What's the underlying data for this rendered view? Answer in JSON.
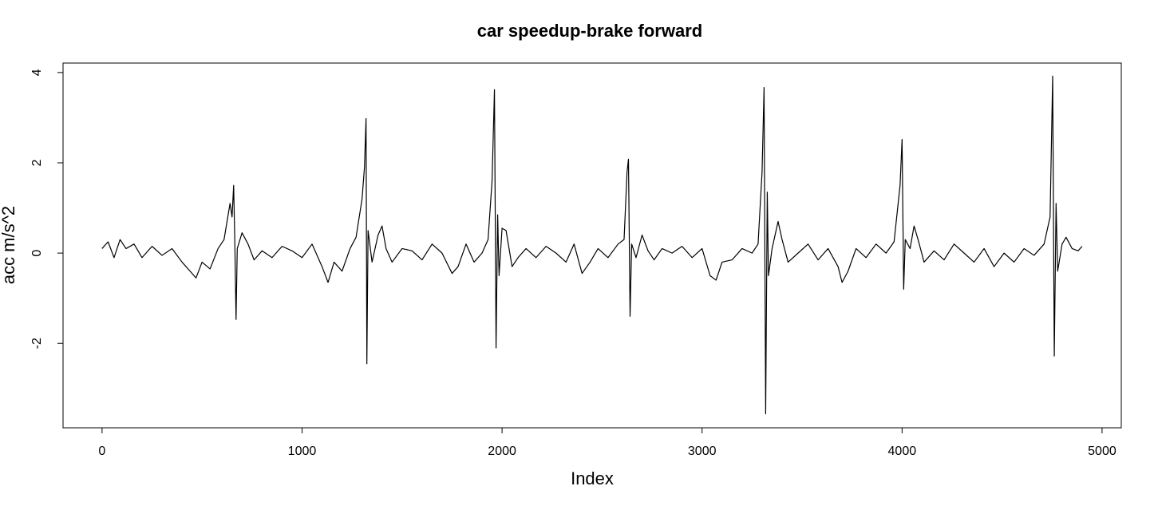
{
  "chart_data": {
    "type": "line",
    "title": "car speedup-brake forward",
    "xlabel": "Index",
    "ylabel": "acc m/s^2",
    "x": [
      0,
      30,
      60,
      90,
      120,
      160,
      200,
      250,
      300,
      350,
      400,
      440,
      470,
      500,
      540,
      580,
      610,
      640,
      650,
      658,
      664,
      670,
      676,
      700,
      730,
      760,
      800,
      850,
      900,
      950,
      1000,
      1050,
      1100,
      1130,
      1160,
      1200,
      1240,
      1270,
      1300,
      1312,
      1320,
      1324,
      1330,
      1350,
      1380,
      1400,
      1420,
      1450,
      1500,
      1550,
      1600,
      1650,
      1700,
      1750,
      1780,
      1820,
      1860,
      1900,
      1930,
      1950,
      1962,
      1970,
      1978,
      1985,
      2000,
      2020,
      2050,
      2080,
      2120,
      2170,
      2220,
      2270,
      2320,
      2360,
      2400,
      2440,
      2480,
      2530,
      2580,
      2610,
      2625,
      2632,
      2640,
      2648,
      2670,
      2700,
      2730,
      2760,
      2800,
      2850,
      2900,
      2950,
      3000,
      3040,
      3070,
      3100,
      3150,
      3200,
      3250,
      3280,
      3300,
      3310,
      3318,
      3326,
      3332,
      3350,
      3380,
      3400,
      3430,
      3480,
      3530,
      3580,
      3630,
      3680,
      3700,
      3730,
      3770,
      3820,
      3870,
      3920,
      3960,
      3990,
      4000,
      4008,
      4016,
      4040,
      4060,
      4080,
      4110,
      4160,
      4210,
      4260,
      4310,
      4360,
      4410,
      4460,
      4510,
      4560,
      4610,
      4660,
      4710,
      4740,
      4753,
      4761,
      4770,
      4778,
      4800,
      4820,
      4850,
      4880,
      4900
    ],
    "series": [
      {
        "color": "#000000",
        "values": [
          0.1,
          0.25,
          -0.1,
          0.3,
          0.1,
          0.2,
          -0.1,
          0.15,
          -0.05,
          0.1,
          -0.2,
          -0.4,
          -0.55,
          -0.2,
          -0.35,
          0.1,
          0.3,
          1.1,
          0.8,
          1.5,
          0.2,
          -1.47,
          0.1,
          0.45,
          0.2,
          -0.15,
          0.05,
          -0.1,
          0.15,
          0.05,
          -0.1,
          0.2,
          -0.3,
          -0.65,
          -0.2,
          -0.4,
          0.1,
          0.35,
          1.2,
          1.9,
          2.98,
          -2.45,
          0.5,
          -0.2,
          0.4,
          0.6,
          0.1,
          -0.2,
          0.1,
          0.05,
          -0.15,
          0.2,
          0.0,
          -0.45,
          -0.3,
          0.2,
          -0.2,
          0.0,
          0.3,
          1.6,
          3.62,
          -2.1,
          0.85,
          -0.5,
          0.55,
          0.5,
          -0.3,
          -0.1,
          0.1,
          -0.1,
          0.15,
          0.0,
          -0.2,
          0.2,
          -0.45,
          -0.2,
          0.1,
          -0.1,
          0.2,
          0.3,
          1.8,
          2.08,
          -1.4,
          0.2,
          -0.1,
          0.4,
          0.05,
          -0.15,
          0.1,
          0.0,
          0.15,
          -0.1,
          0.1,
          -0.5,
          -0.6,
          -0.2,
          -0.15,
          0.1,
          0.0,
          0.2,
          1.8,
          3.67,
          -3.56,
          1.35,
          -0.5,
          0.1,
          0.7,
          0.3,
          -0.2,
          0.0,
          0.2,
          -0.15,
          0.1,
          -0.3,
          -0.65,
          -0.4,
          0.1,
          -0.1,
          0.2,
          0.0,
          0.25,
          1.5,
          2.52,
          -0.8,
          0.3,
          0.1,
          0.6,
          0.3,
          -0.2,
          0.05,
          -0.15,
          0.2,
          0.0,
          -0.2,
          0.1,
          -0.3,
          0.0,
          -0.2,
          0.1,
          -0.05,
          0.2,
          0.8,
          3.92,
          -2.28,
          1.1,
          -0.4,
          0.2,
          0.35,
          0.1,
          0.05,
          0.15
        ]
      }
    ],
    "xlim": [
      -195,
      5096
    ],
    "ylim": [
      -3.87,
      4.21
    ],
    "xticks": [
      0,
      1000,
      2000,
      3000,
      4000,
      5000
    ],
    "yticks": [
      -2,
      0,
      2,
      4
    ]
  }
}
